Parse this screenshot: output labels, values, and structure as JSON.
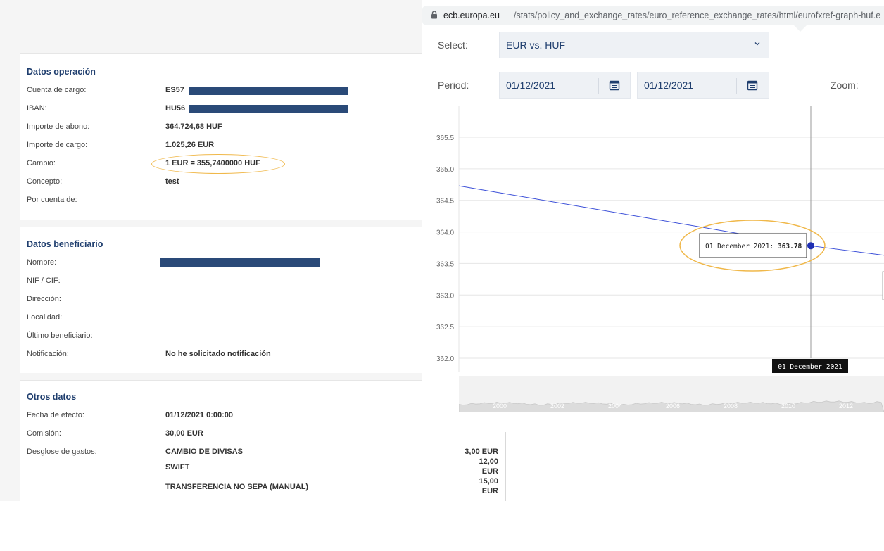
{
  "left": {
    "datos_operacion": {
      "title": "Datos operación",
      "rows": [
        {
          "label": "Cuenta de cargo:",
          "value": "ES57"
        },
        {
          "label": "IBAN:",
          "value": "HU56"
        },
        {
          "label": "Importe de abono:",
          "value": "364.724,68 HUF"
        },
        {
          "label": "Importe de cargo:",
          "value": "1.025,26 EUR"
        },
        {
          "label": "Cambio:",
          "value": "1 EUR = 355,7400000 HUF"
        },
        {
          "label": "Concepto:",
          "value": "test"
        },
        {
          "label": "Por cuenta de:",
          "value": ""
        }
      ]
    },
    "datos_beneficiario": {
      "title": "Datos beneficiario",
      "rows": [
        {
          "label": "Nombre:",
          "value": ""
        },
        {
          "label": "NIF / CIF:",
          "value": ""
        },
        {
          "label": "Dirección:",
          "value": ""
        },
        {
          "label": "Localidad:",
          "value": ""
        },
        {
          "label": "Último beneficiario:",
          "value": ""
        },
        {
          "label": "Notificación:",
          "value": "No he solicitado notificación"
        }
      ]
    },
    "otros_datos": {
      "title": "Otros datos",
      "rows": [
        {
          "label": "Fecha de efecto:",
          "value": "01/12/2021 0:00:00"
        },
        {
          "label": "Comisión:",
          "value": "30,00 EUR"
        },
        {
          "label": "Desglose de gastos:",
          "value": "CAMBIO DE DIVISAS"
        },
        {
          "label": "",
          "value": "SWIFT"
        },
        {
          "label": "",
          "value": "TRANSFERENCIA NO SEPA (MANUAL)"
        }
      ]
    },
    "colors": {
      "section_title": "#1f3e6e",
      "redaction": "#2a4a78",
      "highlight_oval": "#f0b84a"
    }
  },
  "right": {
    "browser": {
      "url_host": "ecb.europa.eu",
      "url_path": "/stats/policy_and_exchange_rates/euro_reference_exchange_rates/html/eurofxref-graph-huf.e"
    },
    "controls": {
      "select_label": "Select:",
      "select_value": "EUR vs. HUF",
      "period_label": "Period:",
      "period_from": "01/12/2021",
      "period_to": "01/12/2021",
      "zoom_label": "Zoom:"
    },
    "fees": [
      "3,00 EUR",
      "12,00",
      "EUR",
      "15,00",
      "EUR"
    ]
  },
  "chart_data": {
    "type": "line",
    "title": "",
    "xlabel": "",
    "ylabel": "",
    "ylim": [
      362.0,
      365.5
    ],
    "y_ticks": [
      "365.5",
      "365.0",
      "364.5",
      "364.0",
      "363.5",
      "363.0",
      "362.5",
      "362.0"
    ],
    "series": [
      {
        "name": "",
        "x": [
          "",
          "01 December 2021",
          ""
        ],
        "values": [
          364.73,
          363.78,
          363.63
        ]
      }
    ],
    "tooltip": {
      "date": "01 December 2021",
      "value": "363.78"
    },
    "crosshair_label": "01 December 2021",
    "navigator_labels": [
      "2000",
      "2002",
      "2004",
      "2006",
      "2008",
      "2010",
      "2012"
    ],
    "grid": true,
    "line_color": "#3b4fd8"
  }
}
